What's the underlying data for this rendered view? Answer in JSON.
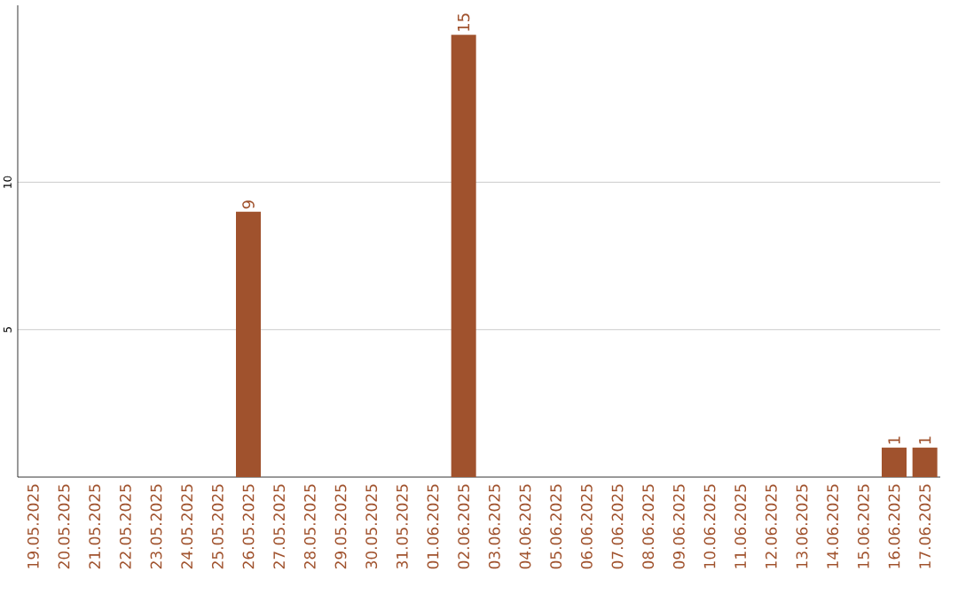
{
  "chart_data": {
    "type": "bar",
    "categories": [
      "19.05.2025",
      "20.05.2025",
      "21.05.2025",
      "22.05.2025",
      "23.05.2025",
      "24.05.2025",
      "25.05.2025",
      "26.05.2025",
      "27.05.2025",
      "28.05.2025",
      "29.05.2025",
      "30.05.2025",
      "31.05.2025",
      "01.06.2025",
      "02.06.2025",
      "03.06.2025",
      "04.06.2025",
      "05.06.2025",
      "06.06.2025",
      "07.06.2025",
      "08.06.2025",
      "09.06.2025",
      "10.06.2025",
      "11.06.2025",
      "12.06.2025",
      "13.06.2025",
      "14.06.2025",
      "15.06.2025",
      "16.06.2025",
      "17.06.2025"
    ],
    "values": [
      0,
      0,
      0,
      0,
      0,
      0,
      0,
      9,
      0,
      0,
      0,
      0,
      0,
      0,
      15,
      0,
      0,
      0,
      0,
      0,
      0,
      0,
      0,
      0,
      0,
      0,
      0,
      0,
      1,
      1
    ],
    "value_labels": [
      null,
      null,
      null,
      null,
      null,
      null,
      null,
      "9",
      null,
      null,
      null,
      null,
      null,
      null,
      "15",
      null,
      null,
      null,
      null,
      null,
      null,
      null,
      null,
      null,
      null,
      null,
      null,
      null,
      "1",
      "1"
    ],
    "color": "#a0522d",
    "ylim": [
      0,
      16
    ],
    "yticks": [
      5,
      10
    ],
    "grid": "y"
  }
}
